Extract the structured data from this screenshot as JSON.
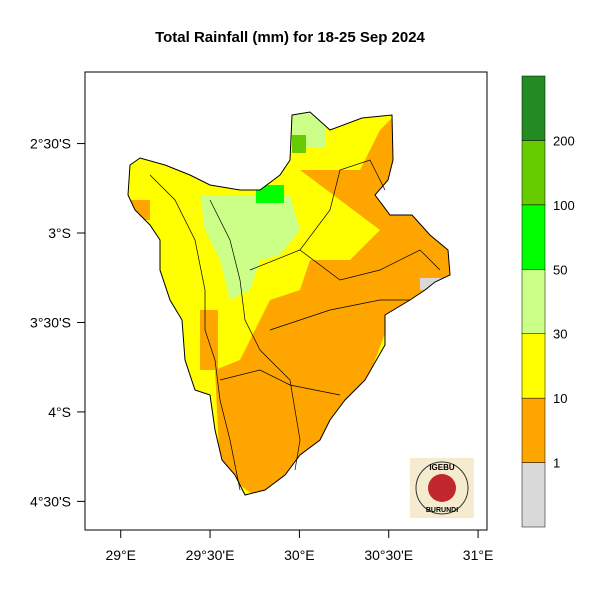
{
  "map": {
    "title": "Total Rainfall (mm) for 18-25 Sep 2024",
    "xlim": [
      28.8,
      31.05
    ],
    "ylim": [
      -4.66,
      -2.1
    ],
    "xticks": [
      {
        "value": 29,
        "label": "29°E"
      },
      {
        "value": 29.5,
        "label": "29°30'E"
      },
      {
        "value": 30,
        "label": "30°E"
      },
      {
        "value": 30.5,
        "label": "30°30'E"
      },
      {
        "value": 31,
        "label": "31°E"
      }
    ],
    "yticks": [
      {
        "value": -2.5,
        "label": "2°30'S"
      },
      {
        "value": -3,
        "label": "3°S"
      },
      {
        "value": -3.5,
        "label": "3°30'S"
      },
      {
        "value": -4,
        "label": "4°S"
      },
      {
        "value": -4.5,
        "label": "4°30'S"
      }
    ],
    "colorbar": {
      "levels": [
        1,
        10,
        30,
        50,
        100,
        200
      ],
      "colors": [
        "#d9d9d9",
        "#ffa500",
        "#ffff00",
        "#ccff88",
        "#00ff00",
        "#66cc00",
        "#228b22"
      ]
    },
    "logo": {
      "top": "IGEBU",
      "bottom": "BURUNDI"
    }
  }
}
